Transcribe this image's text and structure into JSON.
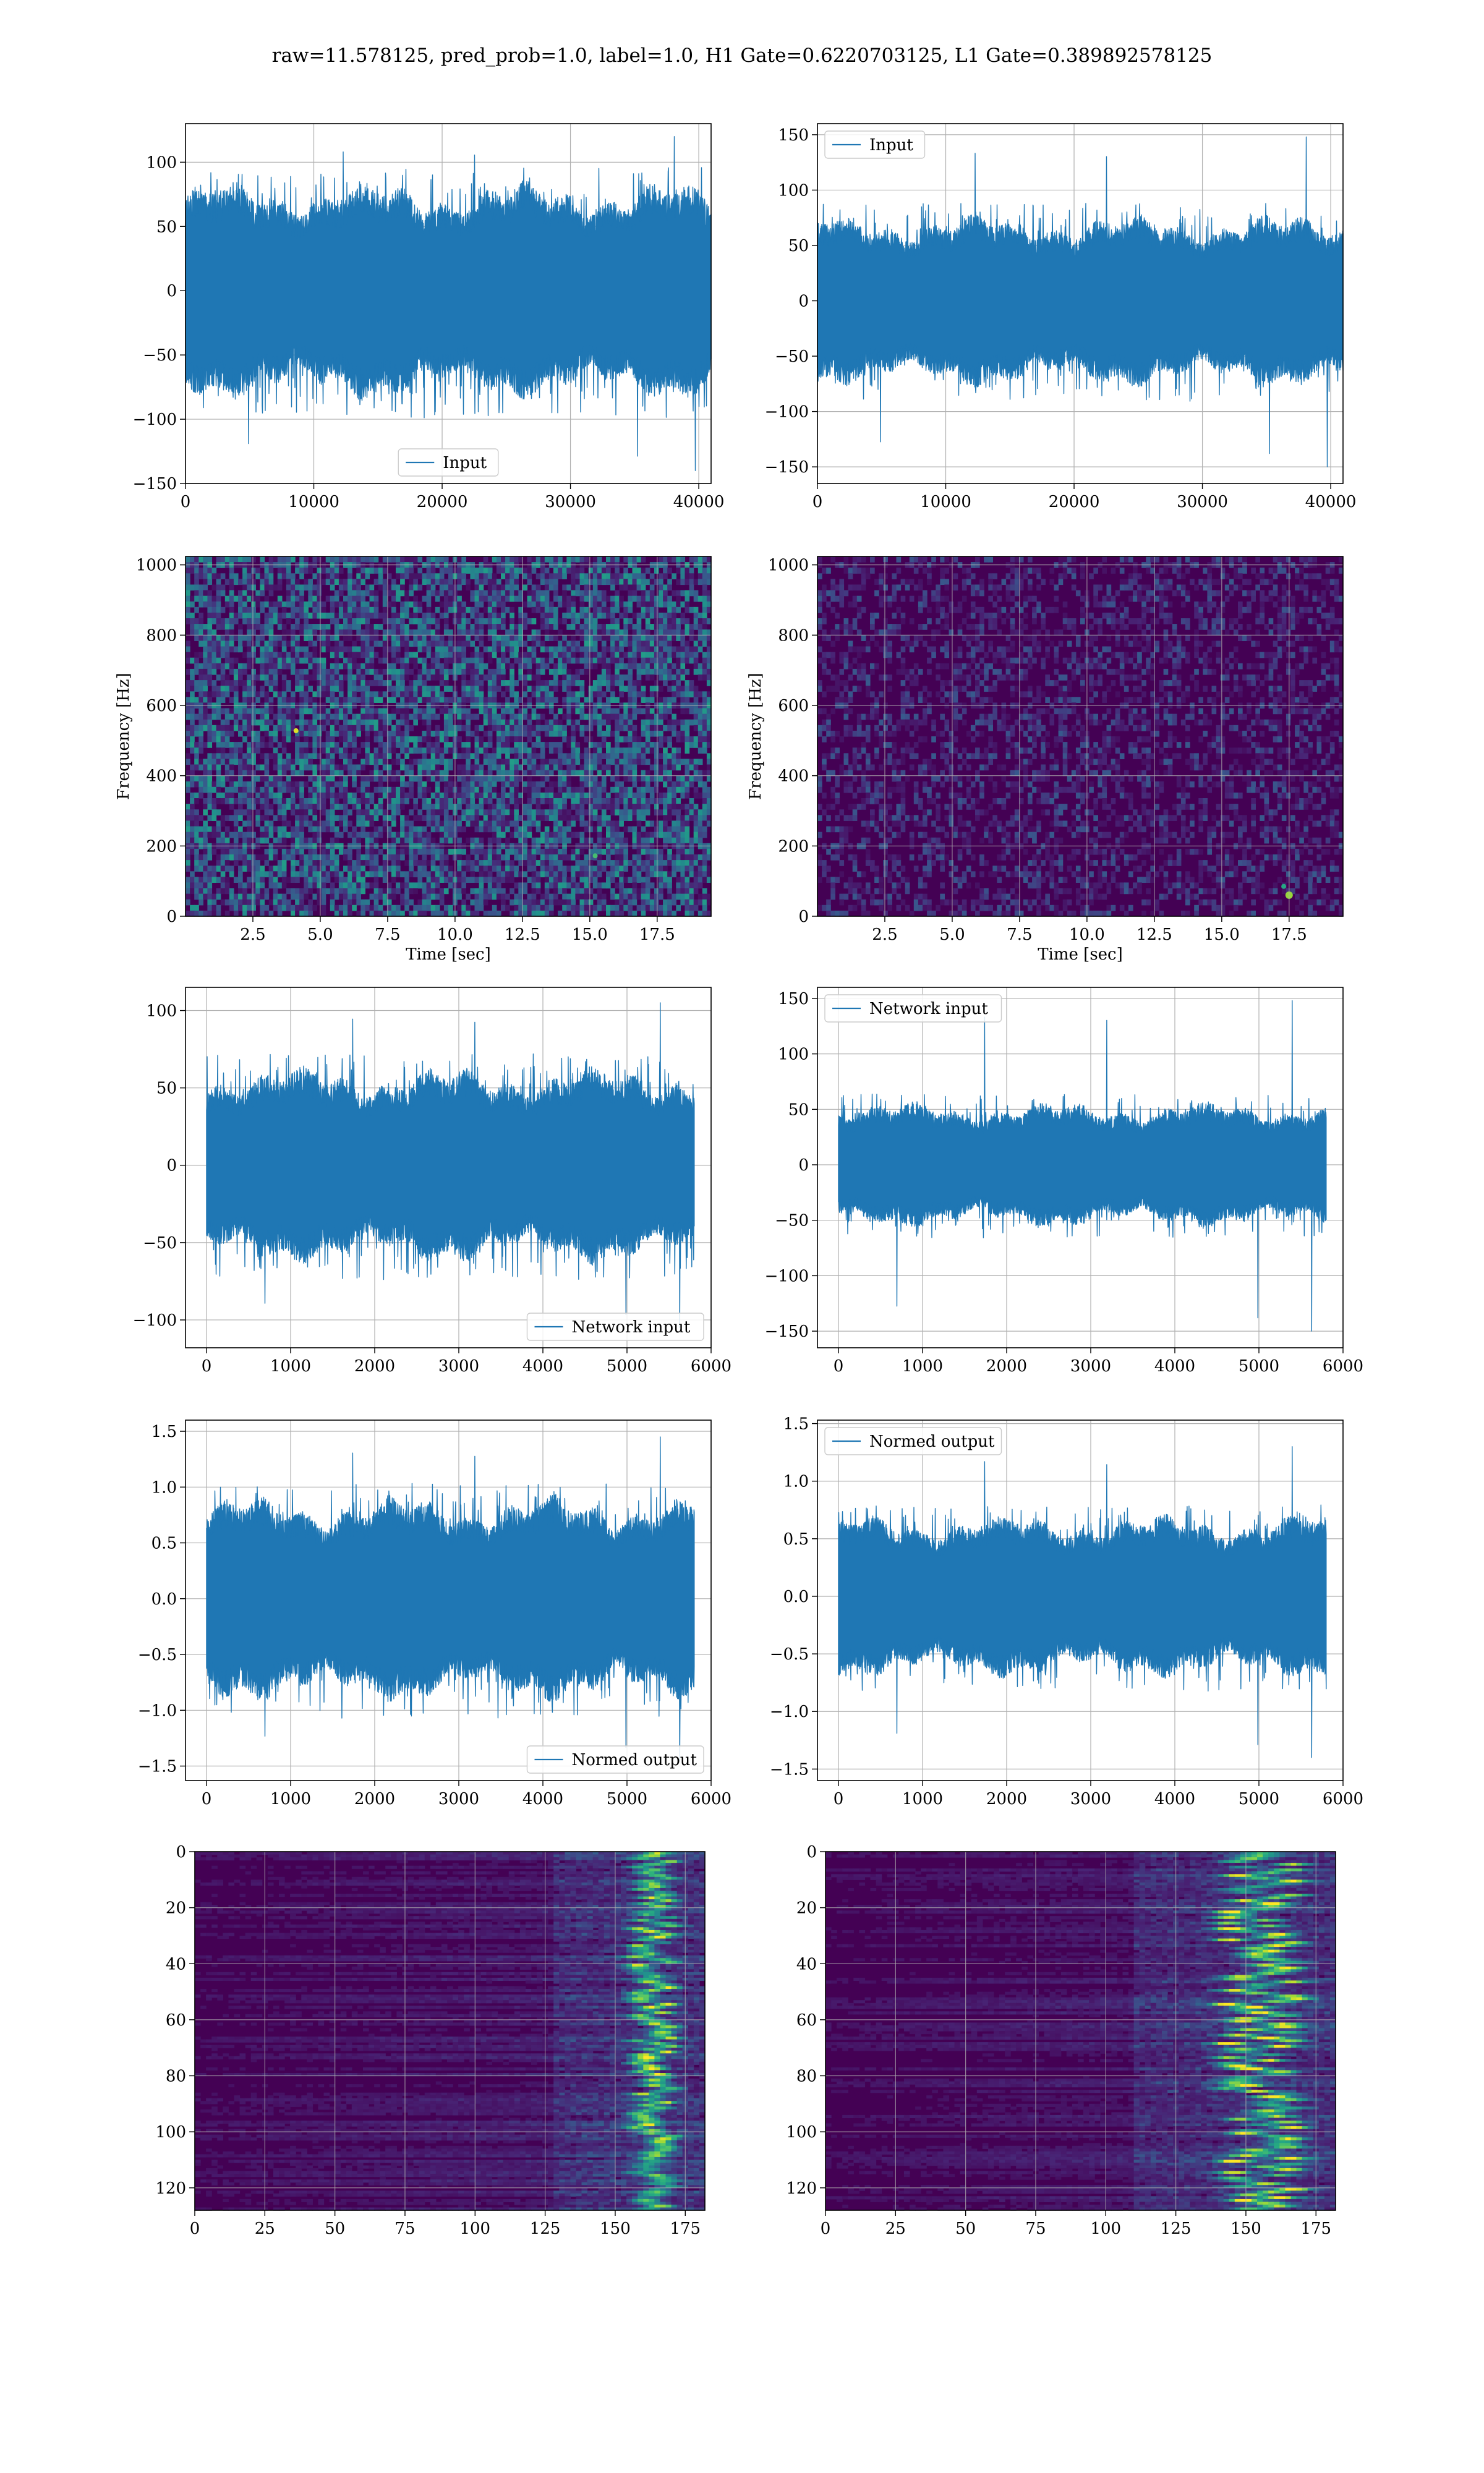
{
  "figure": {
    "suptitle": "raw=11.578125, pred_prob=1.0, label=1.0, H1 Gate=0.6220703125, L1 Gate=0.389892578125"
  },
  "colors": {
    "line": "#1f77b4",
    "grid": "#b0b0b0",
    "viridis_low": "#440154",
    "viridis_mid": "#21918c",
    "viridis_high": "#fde725"
  },
  "chart_data": [
    {
      "id": "h1-input",
      "type": "line",
      "series": [
        {
          "name": "Input",
          "style": "dense noise, roughly symmetric about 0",
          "n_points": 40960,
          "typical_amplitude": 60,
          "peak_max": 120,
          "peak_min": -140
        }
      ],
      "xlim": [
        0,
        40960
      ],
      "ylim": [
        -150,
        130
      ],
      "xticks": [
        "0",
        "10000",
        "20000",
        "30000",
        "40000"
      ],
      "yticks": [
        "100",
        "50",
        "0",
        "−50",
        "−100",
        "−150"
      ],
      "legend": "lower center",
      "grid": true
    },
    {
      "id": "l1-input",
      "type": "line",
      "series": [
        {
          "name": "Input",
          "style": "dense noise, roughly symmetric about 0",
          "n_points": 40960,
          "typical_amplitude": 55,
          "peak_max": 148,
          "peak_min": -150
        }
      ],
      "xlim": [
        0,
        40960
      ],
      "ylim": [
        -165,
        160
      ],
      "xticks": [
        "0",
        "10000",
        "20000",
        "30000",
        "40000"
      ],
      "yticks": [
        "150",
        "100",
        "50",
        "0",
        "−50",
        "−100",
        "−150"
      ],
      "legend": "upper left",
      "grid": true
    },
    {
      "id": "h1-spectrogram",
      "type": "heatmap",
      "colormap": "viridis",
      "xlabel": "Time [sec]",
      "ylabel": "Frequency [Hz]",
      "xlim": [
        0,
        19.5
      ],
      "ylim": [
        0,
        1024
      ],
      "xticks": [
        "2.5",
        "5.0",
        "7.5",
        "10.0",
        "12.5",
        "15.0",
        "17.5"
      ],
      "yticks": [
        "1000",
        "800",
        "600",
        "400",
        "200",
        "0"
      ],
      "grid": true
    },
    {
      "id": "l1-spectrogram",
      "type": "heatmap",
      "colormap": "viridis",
      "xlabel": "Time [sec]",
      "ylabel": "Frequency [Hz]",
      "xlim": [
        0,
        19.5
      ],
      "ylim": [
        0,
        1024
      ],
      "xticks": [
        "2.5",
        "5.0",
        "7.5",
        "10.0",
        "12.5",
        "15.0",
        "17.5"
      ],
      "yticks": [
        "1000",
        "800",
        "600",
        "400",
        "200",
        "0"
      ],
      "grid": true,
      "notable": "bright point near t=17.5 s, f=60 Hz"
    },
    {
      "id": "h1-network-input",
      "type": "line",
      "series": [
        {
          "name": "Network input",
          "style": "dense noise about 0",
          "n_points": 5800,
          "typical_amplitude": 45,
          "peak_max": 105,
          "peak_min": -105
        }
      ],
      "xlim": [
        -250,
        6000
      ],
      "ylim": [
        -118,
        115
      ],
      "xticks": [
        "0",
        "1000",
        "2000",
        "3000",
        "4000",
        "5000",
        "6000"
      ],
      "yticks": [
        "100",
        "50",
        "0",
        "−50",
        "−100"
      ],
      "legend": "lower right",
      "grid": true
    },
    {
      "id": "l1-network-input",
      "type": "line",
      "series": [
        {
          "name": "Network input",
          "style": "dense noise about 0",
          "n_points": 5800,
          "typical_amplitude": 40,
          "peak_max": 148,
          "peak_min": -150
        }
      ],
      "xlim": [
        -250,
        6000
      ],
      "ylim": [
        -165,
        160
      ],
      "xticks": [
        "0",
        "1000",
        "2000",
        "3000",
        "4000",
        "5000",
        "6000"
      ],
      "yticks": [
        "150",
        "100",
        "50",
        "0",
        "−50",
        "−100",
        "−150"
      ],
      "legend": "upper left",
      "grid": true
    },
    {
      "id": "h1-normed-output",
      "type": "line",
      "series": [
        {
          "name": "Normed output",
          "style": "dense noise about 0",
          "n_points": 5800,
          "typical_amplitude": 0.65,
          "peak_max": 1.45,
          "peak_min": -1.45
        }
      ],
      "xlim": [
        -250,
        6000
      ],
      "ylim": [
        -1.63,
        1.6
      ],
      "xticks": [
        "0",
        "1000",
        "2000",
        "3000",
        "4000",
        "5000",
        "6000"
      ],
      "yticks": [
        "1.5",
        "1.0",
        "0.5",
        "0.0",
        "−0.5",
        "−1.0",
        "−1.5"
      ],
      "legend": "lower right",
      "grid": true
    },
    {
      "id": "l1-normed-output",
      "type": "line",
      "series": [
        {
          "name": "Normed output",
          "style": "dense noise about 0",
          "n_points": 5800,
          "typical_amplitude": 0.5,
          "peak_max": 1.3,
          "peak_min": -1.4
        }
      ],
      "xlim": [
        -250,
        6000
      ],
      "ylim": [
        -1.6,
        1.53
      ],
      "xticks": [
        "0",
        "1000",
        "2000",
        "3000",
        "4000",
        "5000",
        "6000"
      ],
      "yticks": [
        "1.5",
        "1.0",
        "0.5",
        "0.0",
        "−0.5",
        "−1.0",
        "−1.5"
      ],
      "legend": "upper left",
      "grid": true
    },
    {
      "id": "h1-feature-map",
      "type": "heatmap",
      "colormap": "viridis",
      "rows": 128,
      "cols": 182,
      "xlim": [
        0,
        182
      ],
      "ylim": [
        128,
        0
      ],
      "xticks": [
        "0",
        "25",
        "50",
        "75",
        "100",
        "125",
        "150",
        "175"
      ],
      "yticks": [
        "0",
        "20",
        "40",
        "60",
        "80",
        "100",
        "120"
      ],
      "grid": true,
      "notable": "bright band around columns 155-170"
    },
    {
      "id": "l1-feature-map",
      "type": "heatmap",
      "colormap": "viridis",
      "rows": 128,
      "cols": 182,
      "xlim": [
        0,
        182
      ],
      "ylim": [
        128,
        0
      ],
      "xticks": [
        "0",
        "25",
        "50",
        "75",
        "100",
        "125",
        "150",
        "175"
      ],
      "yticks": [
        "0",
        "20",
        "40",
        "60",
        "80",
        "100",
        "120"
      ],
      "grid": true,
      "notable": "bright band around columns 140-170"
    }
  ]
}
